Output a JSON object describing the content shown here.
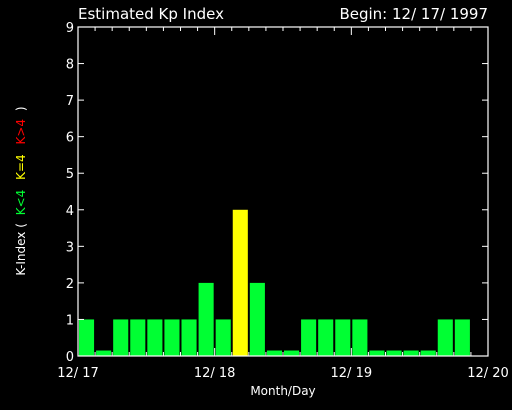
{
  "chart_data": {
    "type": "bar",
    "title": "Estimated Kp Index",
    "begin_label": "Begin: 12/ 17/ 1997",
    "xlabel": "Month/Day",
    "ylabel": {
      "prefix": "K-Index (",
      "low": "K<4",
      "mid": "K=4",
      "high": "K>4",
      "suffix": ")"
    },
    "ylim": [
      0,
      9
    ],
    "yticks": [
      "0",
      "1",
      "2",
      "3",
      "4",
      "5",
      "6",
      "7",
      "8",
      "9"
    ],
    "xticks": [
      "12/ 17",
      "12/ 18",
      "12/ 19",
      "12/ 20"
    ],
    "bar_hours": 3,
    "values": [
      1,
      0.15,
      1,
      1,
      1,
      1,
      1,
      2,
      1,
      4,
      2,
      0.15,
      0.15,
      1,
      1,
      1,
      1,
      0.15,
      0.15,
      0.15,
      0.15,
      1,
      1
    ],
    "colors": {
      "background": "#000000",
      "axes": "#ffffff",
      "low": "#00ff33",
      "mid": "#ffff00",
      "high": "#ff0000"
    },
    "grid": false,
    "legend": "none"
  }
}
